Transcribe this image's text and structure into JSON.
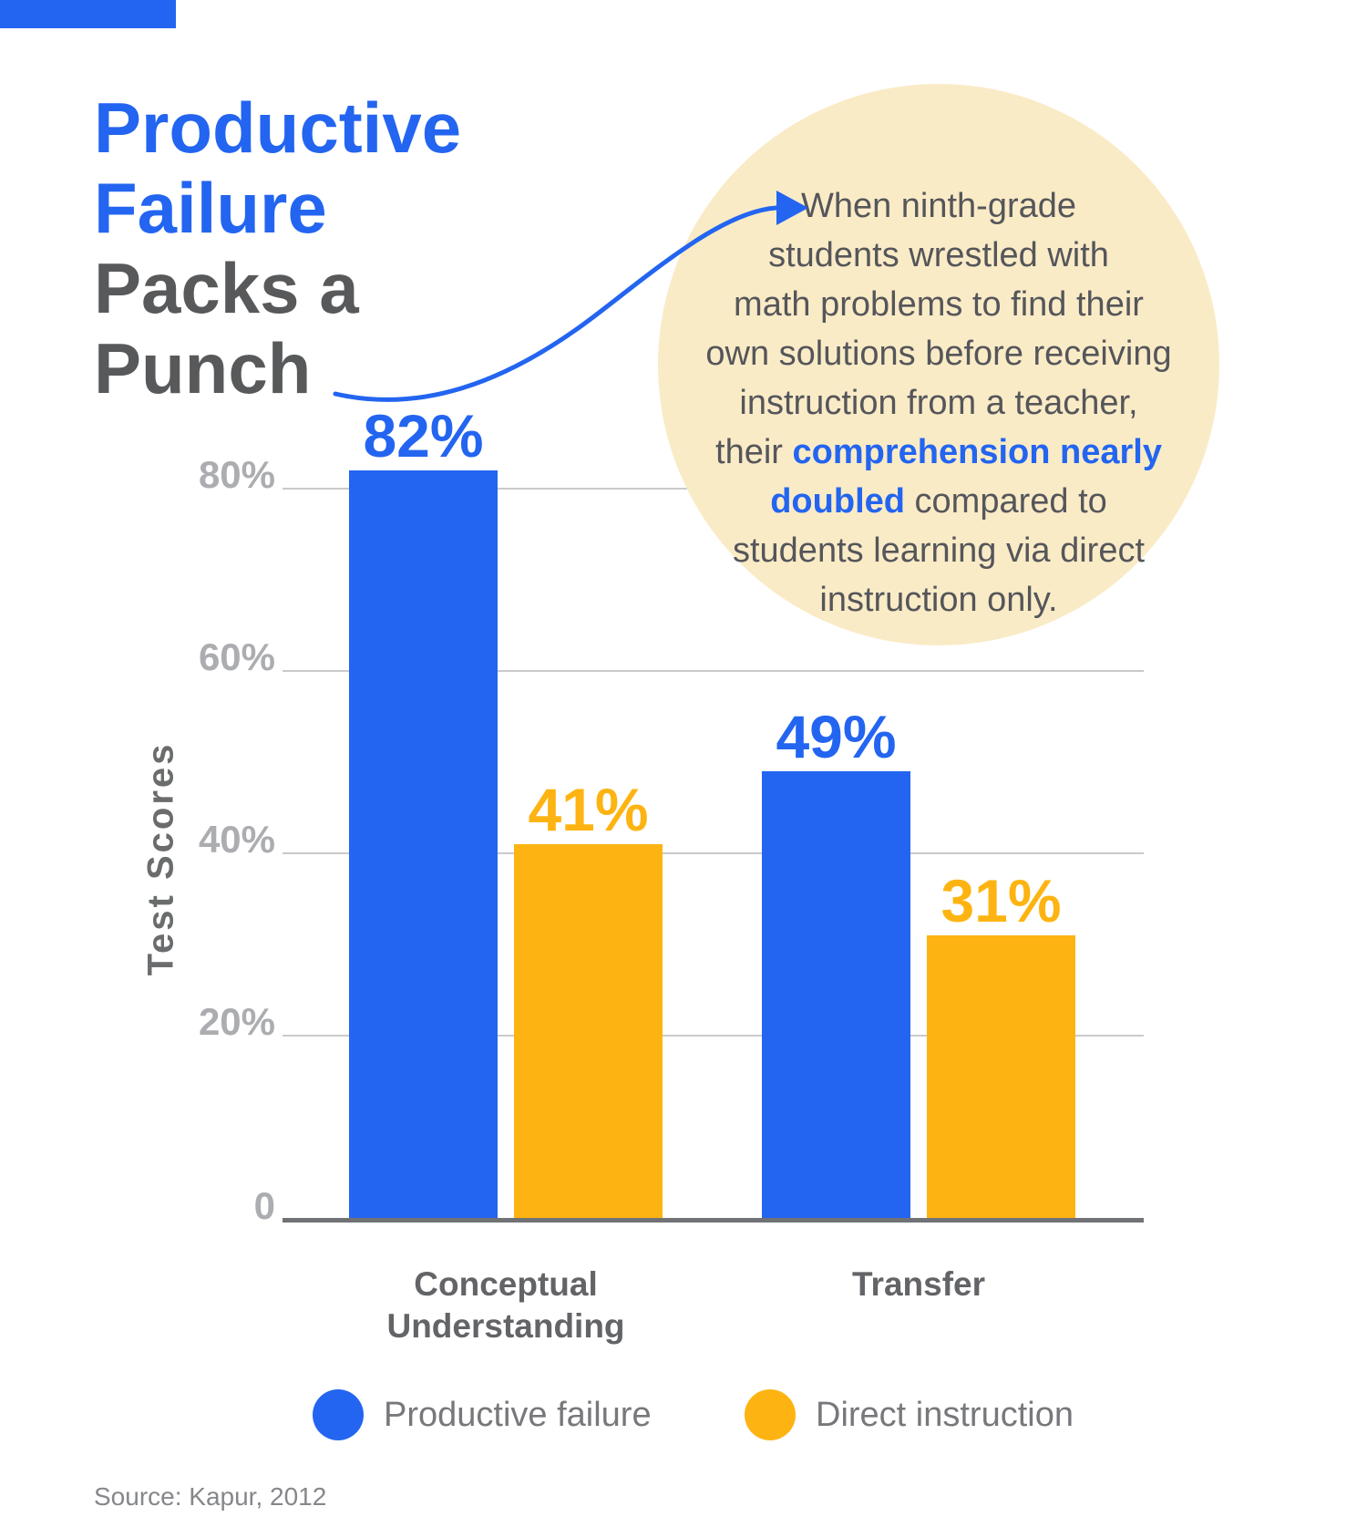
{
  "colors": {
    "blue": "#2365F0",
    "yellow": "#FDB412",
    "cream": "#FAEBC7",
    "title_gray": "#58595B",
    "bubble_text_gray": "#55565A",
    "tick_gray": "#ABADB0",
    "grid_line": "#C9CACC",
    "axis_line": "#717275",
    "category_label_gray": "#636467",
    "ylabel_gray": "#6B6C6E",
    "legend_text_gray": "#77787B",
    "source_gray": "#85878A"
  },
  "title": {
    "blue_lines": [
      "Productive",
      "Failure"
    ],
    "gray_lines": [
      "Packs a",
      "Punch"
    ]
  },
  "arrow": {
    "color": "#2365F0"
  },
  "bubble": {
    "lines": [
      [
        {
          "t": "When ninth-grade"
        }
      ],
      [
        {
          "t": "students wrestled with"
        }
      ],
      [
        {
          "t": "math problems to find their"
        }
      ],
      [
        {
          "t": "own solutions before receiving"
        }
      ],
      [
        {
          "t": "instruction from a teacher,"
        }
      ],
      [
        {
          "t": "their "
        },
        {
          "t": "comprehension nearly",
          "b": true
        }
      ],
      [
        {
          "t": "doubled",
          "b": true
        },
        {
          "t": " compared to"
        }
      ],
      [
        {
          "t": "students learning via direct"
        }
      ],
      [
        {
          "t": "instruction only."
        }
      ]
    ]
  },
  "chart_data": {
    "type": "bar",
    "title": "Productive Failure Packs a Punch",
    "xlabel": "",
    "ylabel": "Test Scores",
    "ylim": [
      0,
      100
    ],
    "grid": true,
    "legend_position": "bottom",
    "yticks": [
      {
        "label": "80%",
        "value": 80
      },
      {
        "label": "60%",
        "value": 60
      },
      {
        "label": "40%",
        "value": 40
      },
      {
        "label": "20%",
        "value": 20
      },
      {
        "label": "0",
        "value": 0
      }
    ],
    "categories": [
      "Conceptual Understanding",
      "Transfer"
    ],
    "series": [
      {
        "name": "Productive failure",
        "color": "#2365F0",
        "values": [
          82,
          49
        ],
        "labels": [
          "82%",
          "49%"
        ]
      },
      {
        "name": "Direct instruction",
        "color": "#FDB412",
        "values": [
          41,
          31
        ],
        "labels": [
          "41%",
          "31%"
        ]
      }
    ]
  },
  "source": {
    "text": "Source: Kapur, 2012"
  }
}
